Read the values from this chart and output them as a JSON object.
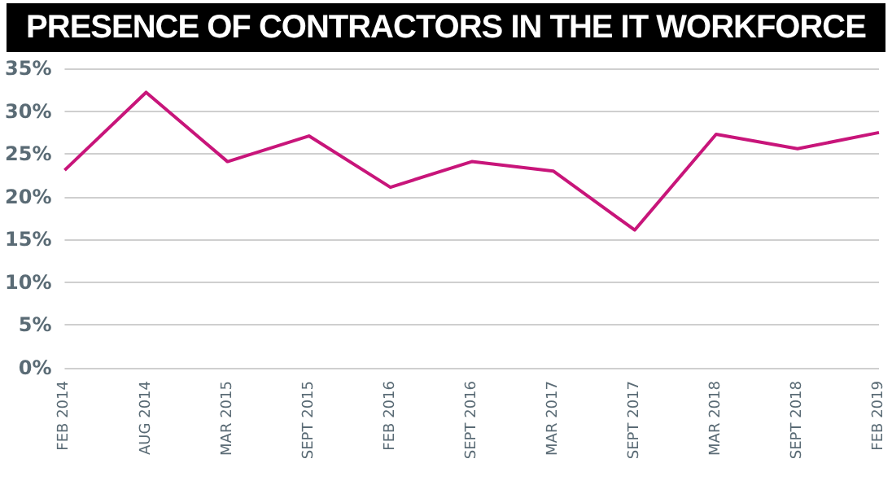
{
  "chart_data": {
    "type": "line",
    "title": "PRESENCE OF CONTRACTORS IN THE IT WORKFORCE",
    "categories": [
      "FEB 2014",
      "AUG 2014",
      "MAR 2015",
      "SEPT 2015",
      "FEB 2016",
      "SEPT 2016",
      "MAR 2017",
      "SEPT 2017",
      "MAR 2018",
      "SEPT 2018",
      "FEB 2019"
    ],
    "series": [
      {
        "color": "#c8157a",
        "values": [
          23.1,
          32.2,
          24.1,
          27.1,
          21.1,
          24.1,
          23,
          16.1,
          27.3,
          25.6,
          27.5
        ]
      }
    ],
    "ylim": [
      0,
      35
    ],
    "yticks": [
      {
        "value": 0,
        "label": "0%"
      },
      {
        "value": 5,
        "label": "5%"
      },
      {
        "value": 10,
        "label": "10%"
      },
      {
        "value": 15,
        "label": "15%"
      },
      {
        "value": 20,
        "label": "20%"
      },
      {
        "value": 25,
        "label": "25%"
      },
      {
        "value": 30,
        "label": "30%"
      },
      {
        "value": 35,
        "label": "35%"
      }
    ],
    "grid": "y",
    "marker": "none",
    "line_style": "solid"
  }
}
